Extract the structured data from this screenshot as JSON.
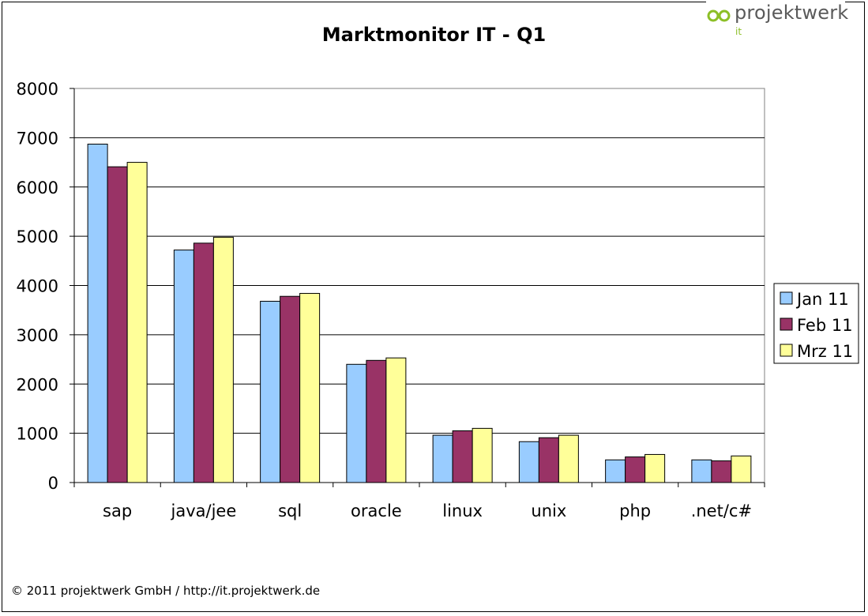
{
  "title": "Marktmonitor IT - Q1",
  "logo": {
    "name": "projektwerk",
    "sub": "it"
  },
  "footer": "© 2011 projektwerk GmbH / http://it.projektwerk.de",
  "colors": {
    "logo_green": "#8cbf26",
    "grid": "#000000",
    "plot_border": "#808080"
  },
  "chart_data": {
    "type": "bar",
    "title": "Marktmonitor IT - Q1",
    "xlabel": "",
    "ylabel": "",
    "categories": [
      "sap",
      "java/jee",
      "sql",
      "oracle",
      "linux",
      "unix",
      "php",
      ".net/c#"
    ],
    "series": [
      {
        "name": "Jan 11",
        "color": "#99ccff",
        "values": [
          6870,
          4720,
          3680,
          2400,
          960,
          830,
          460,
          460
        ]
      },
      {
        "name": "Feb 11",
        "color": "#993366",
        "values": [
          6410,
          4860,
          3780,
          2480,
          1050,
          910,
          520,
          440
        ]
      },
      {
        "name": "Mrz 11",
        "color": "#ffff99",
        "values": [
          6500,
          4980,
          3840,
          2530,
          1100,
          960,
          570,
          540
        ]
      }
    ],
    "ylim": [
      0,
      8000
    ],
    "yticks": [
      0,
      1000,
      2000,
      3000,
      4000,
      5000,
      6000,
      7000,
      8000
    ],
    "grid": true,
    "legend": "right"
  }
}
